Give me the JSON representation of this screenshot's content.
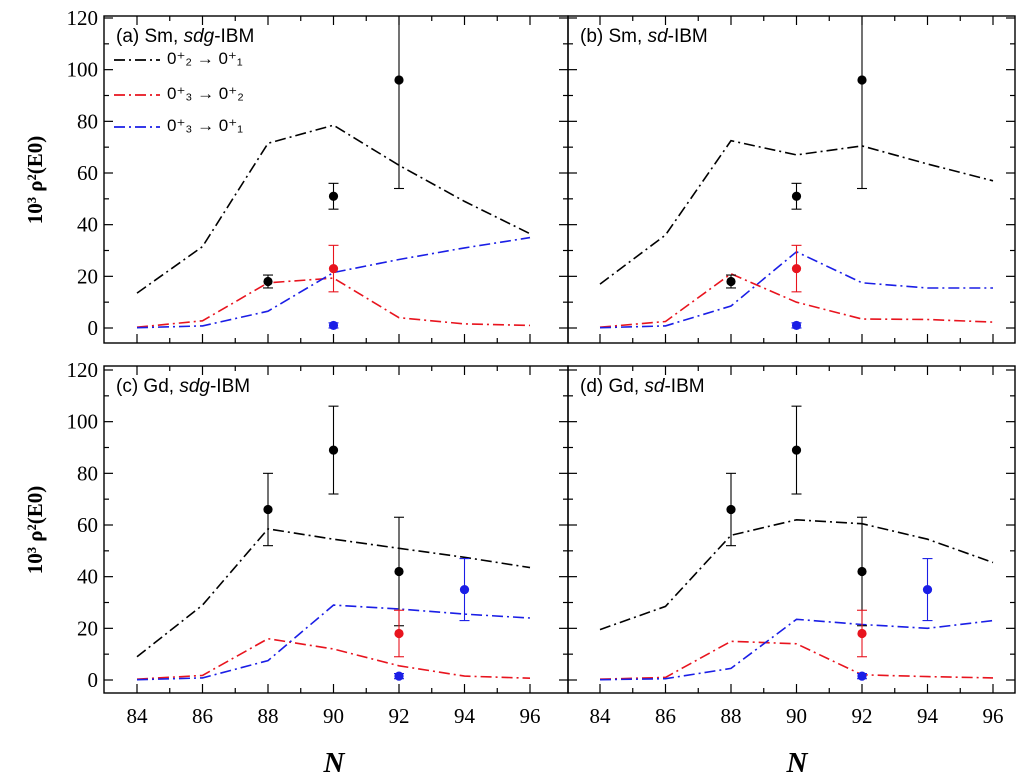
{
  "chart_data": {
    "type": "line",
    "xlabel": "N",
    "ylabel": "10³ ρ²(E0)",
    "x_ticks": [
      84,
      86,
      88,
      90,
      92,
      94,
      96
    ],
    "y_ticks": [
      0,
      20,
      40,
      60,
      80,
      100,
      120
    ],
    "xlim": [
      83,
      97
    ],
    "ylim": [
      -5,
      120
    ],
    "grid": false,
    "legend": {
      "placement": "top-left",
      "entries": [
        {
          "key": "s21",
          "text": "0⁺₂ → 0⁺₁",
          "color": "#000000"
        },
        {
          "key": "s32",
          "text": "0⁺₃ → 0⁺₂",
          "color": "#e8141e"
        },
        {
          "key": "s31",
          "text": "0⁺₃ → 0⁺₁",
          "color": "#1a1ee6"
        }
      ]
    },
    "panels": [
      {
        "id": "a",
        "label": "(a) Sm, sdg-IBM",
        "label_parts": [
          "(a) Sm, ",
          "sdg",
          "-IBM"
        ],
        "series": [
          {
            "key": "s21",
            "color": "#000000",
            "x": [
              84,
              86,
              88,
              90,
              92,
              94,
              96
            ],
            "y": [
              13.5,
              31.5,
              71.5,
              78.5,
              63,
              49,
              36.5
            ]
          },
          {
            "key": "s32",
            "color": "#e8141e",
            "x": [
              84,
              86,
              88,
              90,
              92,
              94,
              96
            ],
            "y": [
              0.3,
              2.8,
              17.5,
              19.3,
              4,
              1.6,
              1
            ]
          },
          {
            "key": "s31",
            "color": "#1a1ee6",
            "x": [
              84,
              86,
              88,
              90,
              92,
              94,
              96
            ],
            "y": [
              0.1,
              0.8,
              6.5,
              21.5,
              26.5,
              31,
              35
            ]
          }
        ],
        "experiment": [
          {
            "color": "#000000",
            "x": 88,
            "y": 18,
            "err": 2.5
          },
          {
            "color": "#000000",
            "x": 90,
            "y": 51,
            "err": 5
          },
          {
            "color": "#000000",
            "x": 92,
            "y": 96,
            "err": 42
          },
          {
            "color": "#e8141e",
            "x": 90,
            "y": 23,
            "err": 9
          },
          {
            "color": "#1a1ee6",
            "x": 90,
            "y": 1,
            "err": 1
          }
        ]
      },
      {
        "id": "b",
        "label": "(b) Sm, sd-IBM",
        "label_parts": [
          "(b) Sm, ",
          "sd",
          "-IBM"
        ],
        "series": [
          {
            "key": "s21",
            "color": "#000000",
            "x": [
              84,
              86,
              88,
              90,
              92,
              94,
              96
            ],
            "y": [
              17,
              36,
              72.5,
              67,
              70.5,
              63.5,
              57
            ]
          },
          {
            "key": "s32",
            "color": "#e8141e",
            "x": [
              84,
              86,
              88,
              90,
              92,
              94,
              96
            ],
            "y": [
              0.3,
              2.5,
              21,
              10,
              3.5,
              3.3,
              2.3
            ]
          },
          {
            "key": "s31",
            "color": "#1a1ee6",
            "x": [
              84,
              86,
              88,
              90,
              92,
              94,
              96
            ],
            "y": [
              0.1,
              0.8,
              8.5,
              29.5,
              17.5,
              15.5,
              15.5
            ]
          }
        ],
        "experiment": [
          {
            "color": "#000000",
            "x": 88,
            "y": 18,
            "err": 2.5
          },
          {
            "color": "#000000",
            "x": 90,
            "y": 51,
            "err": 5
          },
          {
            "color": "#000000",
            "x": 92,
            "y": 96,
            "err": 42
          },
          {
            "color": "#e8141e",
            "x": 90,
            "y": 23,
            "err": 9
          },
          {
            "color": "#1a1ee6",
            "x": 90,
            "y": 1,
            "err": 1
          }
        ]
      },
      {
        "id": "c",
        "label": "(c) Gd, sdg-IBM",
        "label_parts": [
          "(c) Gd, ",
          "sdg",
          "-IBM"
        ],
        "series": [
          {
            "key": "s21",
            "color": "#000000",
            "x": [
              84,
              86,
              88,
              90,
              92,
              94,
              96
            ],
            "y": [
              9,
              29,
              58.5,
              54.5,
              51,
              47.5,
              43.5
            ]
          },
          {
            "key": "s32",
            "color": "#e8141e",
            "x": [
              84,
              86,
              88,
              90,
              92,
              94,
              96
            ],
            "y": [
              0.3,
              1.8,
              16,
              12,
              5.5,
              1.5,
              0.7
            ]
          },
          {
            "key": "s31",
            "color": "#1a1ee6",
            "x": [
              84,
              86,
              88,
              90,
              92,
              94,
              96
            ],
            "y": [
              0.1,
              0.8,
              7.5,
              29,
              27.5,
              25.5,
              24
            ]
          }
        ],
        "experiment": [
          {
            "color": "#000000",
            "x": 88,
            "y": 66,
            "err": 14
          },
          {
            "color": "#000000",
            "x": 90,
            "y": 89,
            "err": 17
          },
          {
            "color": "#000000",
            "x": 92,
            "y": 42,
            "err": 21
          },
          {
            "color": "#e8141e",
            "x": 92,
            "y": 18,
            "err": 9
          },
          {
            "color": "#1a1ee6",
            "x": 92,
            "y": 1.5,
            "err": 1
          },
          {
            "color": "#1a1ee6",
            "x": 94,
            "y": 35,
            "err": 12
          }
        ]
      },
      {
        "id": "d",
        "label": "(d) Gd, sd-IBM",
        "label_parts": [
          "(d) Gd, ",
          "sd",
          "-IBM"
        ],
        "series": [
          {
            "key": "s21",
            "color": "#000000",
            "x": [
              84,
              86,
              88,
              90,
              92,
              94,
              96
            ],
            "y": [
              19.5,
              28.5,
              56,
              62,
              60.5,
              54.5,
              45.5
            ]
          },
          {
            "key": "s32",
            "color": "#e8141e",
            "x": [
              84,
              86,
              88,
              90,
              92,
              94,
              96
            ],
            "y": [
              0.3,
              1,
              15,
              14,
              2,
              1.3,
              0.8
            ]
          },
          {
            "key": "s31",
            "color": "#1a1ee6",
            "x": [
              84,
              86,
              88,
              90,
              92,
              94,
              96
            ],
            "y": [
              0.1,
              0.5,
              4.5,
              23.5,
              21.5,
              20,
              23
            ]
          }
        ],
        "experiment": [
          {
            "color": "#000000",
            "x": 88,
            "y": 66,
            "err": 14
          },
          {
            "color": "#000000",
            "x": 90,
            "y": 89,
            "err": 17
          },
          {
            "color": "#000000",
            "x": 92,
            "y": 42,
            "err": 21
          },
          {
            "color": "#e8141e",
            "x": 92,
            "y": 18,
            "err": 9
          },
          {
            "color": "#1a1ee6",
            "x": 92,
            "y": 1.5,
            "err": 1
          },
          {
            "color": "#1a1ee6",
            "x": 94,
            "y": 35,
            "err": 12
          }
        ]
      }
    ]
  }
}
